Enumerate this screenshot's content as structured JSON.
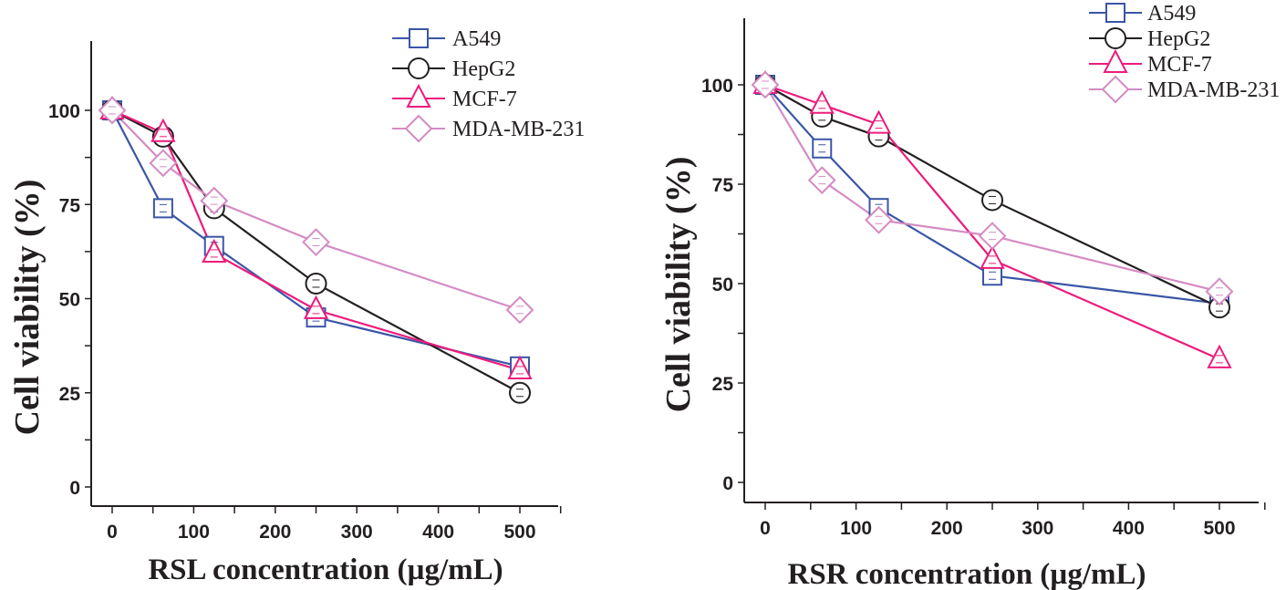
{
  "chart_data": [
    {
      "type": "line",
      "id": "rsl",
      "title": "",
      "xlabel": "RSL concentration (µg/mL)",
      "ylabel": "Cell viability (%)",
      "xlim": [
        -25,
        550
      ],
      "ylim": [
        -10,
        110
      ],
      "xticks": [
        0,
        100,
        200,
        300,
        400,
        500
      ],
      "yticks": [
        0,
        25,
        50,
        75,
        100
      ],
      "x": [
        0,
        62.5,
        125,
        250,
        500
      ],
      "legend_position": "top-right",
      "series": [
        {
          "name": "A549",
          "marker": "square",
          "color": "#3a56a6",
          "values": [
            100,
            74,
            64,
            45,
            32
          ]
        },
        {
          "name": "HepG2",
          "marker": "circle",
          "color": "#231f20",
          "values": [
            100,
            93,
            74,
            54,
            25
          ]
        },
        {
          "name": "MCF-7",
          "marker": "triangle",
          "color": "#ec1c7c",
          "values": [
            100,
            94,
            62,
            47,
            31
          ]
        },
        {
          "name": "MDA-MB-231",
          "marker": "diamond",
          "color": "#d48bc3",
          "values": [
            100,
            86,
            76,
            65,
            47
          ]
        }
      ]
    },
    {
      "type": "line",
      "id": "rsr",
      "title": "",
      "xlabel": "RSR concentration (µg/mL)",
      "ylabel": "Cell viability (%)",
      "xlim": [
        -25,
        550
      ],
      "ylim": [
        -10,
        110
      ],
      "xticks": [
        0,
        100,
        200,
        300,
        400,
        500
      ],
      "yticks": [
        0,
        25,
        50,
        75,
        100
      ],
      "x": [
        0,
        62.5,
        125,
        250,
        500
      ],
      "legend_position": "top-right",
      "series": [
        {
          "name": "A549",
          "marker": "square",
          "color": "#3a56a6",
          "values": [
            100,
            84,
            69,
            52,
            45
          ]
        },
        {
          "name": "HepG2",
          "marker": "circle",
          "color": "#231f20",
          "values": [
            100,
            92,
            87,
            71,
            44
          ]
        },
        {
          "name": "MCF-7",
          "marker": "triangle",
          "color": "#ec1c7c",
          "values": [
            100,
            95,
            90,
            56,
            31
          ]
        },
        {
          "name": "MDA-MB-231",
          "marker": "diamond",
          "color": "#d48bc3",
          "values": [
            100,
            76,
            66,
            62,
            48
          ]
        }
      ]
    }
  ]
}
